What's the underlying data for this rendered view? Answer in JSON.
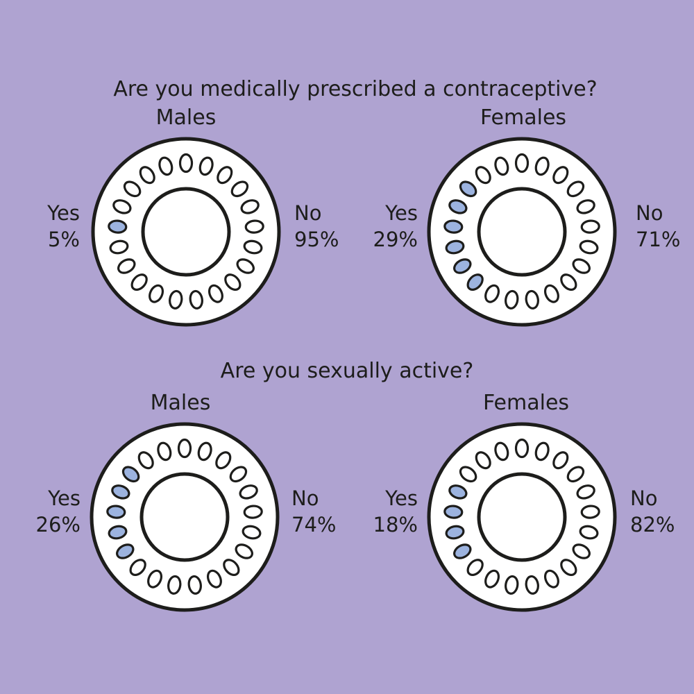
{
  "colors": {
    "background": "#afa3d1",
    "filled_pill": "#9cb3df",
    "empty_pill": "#ffffff",
    "outline": "#1d1d1b"
  },
  "questions": [
    "Are you medically prescribed a contraceptive?",
    "Are you sexually active?"
  ],
  "chart_data": [
    {
      "type": "pie",
      "question": "Are you medically prescribed a contraceptive?",
      "title": "Males",
      "categories": [
        "Yes",
        "No"
      ],
      "values": [
        5,
        95
      ],
      "labels": [
        "5%",
        "95%"
      ],
      "pills_total": 21,
      "pills_filled": 1
    },
    {
      "type": "pie",
      "question": "Are you medically prescribed a contraceptive?",
      "title": "Females",
      "categories": [
        "Yes",
        "No"
      ],
      "values": [
        29,
        71
      ],
      "labels": [
        "29%",
        "71%"
      ],
      "pills_total": 21,
      "pills_filled": 6
    },
    {
      "type": "pie",
      "question": "Are you sexually active?",
      "title": "Males",
      "categories": [
        "Yes",
        "No"
      ],
      "values": [
        26,
        74
      ],
      "labels": [
        "26%",
        "74%"
      ],
      "pills_total": 21,
      "pills_filled": 5
    },
    {
      "type": "pie",
      "question": "Are you sexually active?",
      "title": "Females",
      "categories": [
        "Yes",
        "No"
      ],
      "values": [
        18,
        82
      ],
      "labels": [
        "18%",
        "82%"
      ],
      "pills_total": 21,
      "pills_filled": 4
    }
  ]
}
